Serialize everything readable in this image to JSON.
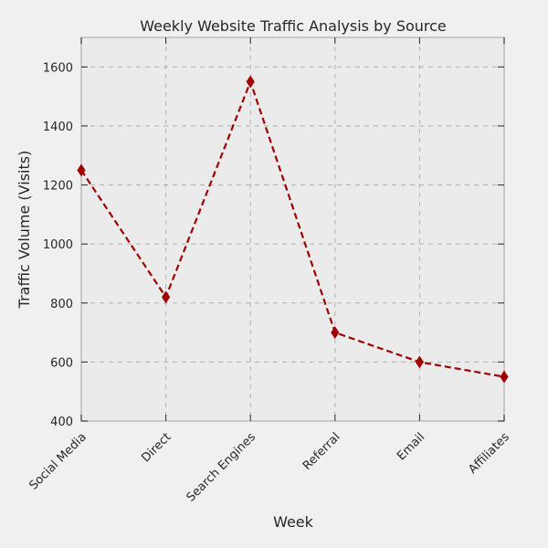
{
  "chart_data": {
    "type": "line",
    "title": "Weekly Website Traffic Analysis by Source",
    "xlabel": "Week",
    "ylabel": "Traffic Volume (Visits)",
    "categories": [
      "Social Media",
      "Direct",
      "Search Engines",
      "Referral",
      "Email",
      "Affiliates"
    ],
    "series": [
      {
        "values": [
          1250,
          820,
          1550,
          700,
          600,
          550
        ],
        "color": "#a00000",
        "line_style": "dashed",
        "marker": "diamond"
      }
    ],
    "ylim": [
      400,
      1700
    ],
    "yticks": [
      400,
      600,
      800,
      1000,
      1200,
      1400,
      1600
    ],
    "grid": true,
    "legend": "none"
  }
}
